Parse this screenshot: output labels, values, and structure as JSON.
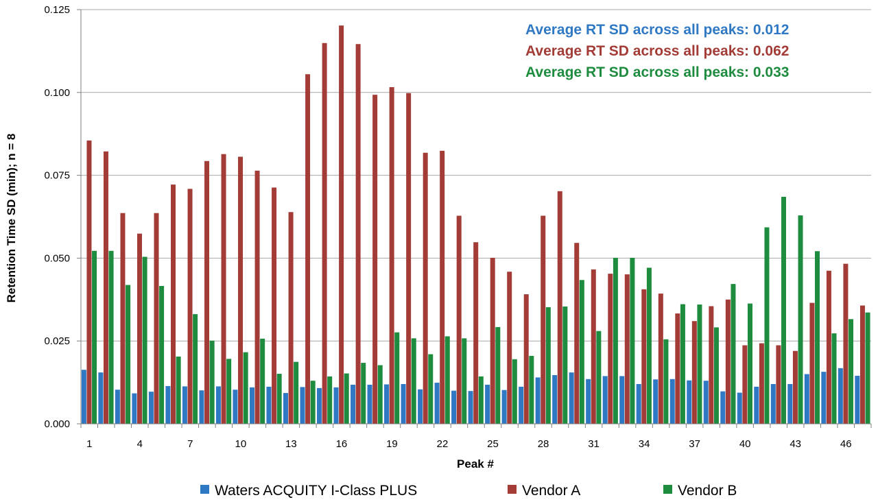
{
  "chart_data": {
    "type": "bar",
    "xlabel": "Peak #",
    "ylabel": "Retention Time SD (min); n = 8",
    "ylim": [
      0,
      0.125
    ],
    "yticks": [
      "0.000",
      "0.025",
      "0.050",
      "0.075",
      "0.100",
      "0.125"
    ],
    "ytick_values": [
      0,
      0.025,
      0.05,
      0.075,
      0.1,
      0.125
    ],
    "xtick_labels": [
      "1",
      "4",
      "7",
      "10",
      "13",
      "16",
      "19",
      "22",
      "25",
      "28",
      "31",
      "34",
      "37",
      "40",
      "43",
      "46"
    ],
    "categories": [
      "1",
      "2",
      "3",
      "4",
      "5",
      "6",
      "7",
      "8",
      "9",
      "10",
      "11",
      "12",
      "13",
      "14",
      "15",
      "16",
      "17",
      "18",
      "19",
      "20",
      "21",
      "22",
      "23",
      "24",
      "25",
      "26",
      "27",
      "28",
      "29",
      "30",
      "31",
      "32",
      "33",
      "34",
      "35",
      "36",
      "37",
      "38",
      "39",
      "40",
      "41",
      "42",
      "43",
      "44",
      "45",
      "46",
      "47"
    ],
    "grid": "horizontal",
    "legend_position": "bottom",
    "series": [
      {
        "name": "Waters ACQUITY I-Class PLUS",
        "color": "#2F78C4",
        "values": [
          0.0163,
          0.0155,
          0.0103,
          0.0092,
          0.0097,
          0.0114,
          0.0113,
          0.0101,
          0.0113,
          0.0103,
          0.011,
          0.0112,
          0.0093,
          0.0111,
          0.0108,
          0.011,
          0.0118,
          0.0118,
          0.0119,
          0.012,
          0.0104,
          0.0124,
          0.01,
          0.0099,
          0.0118,
          0.0102,
          0.0112,
          0.014,
          0.0147,
          0.0155,
          0.0135,
          0.0144,
          0.0144,
          0.012,
          0.0134,
          0.0135,
          0.0131,
          0.013,
          0.0098,
          0.0094,
          0.0112,
          0.012,
          0.012,
          0.015,
          0.0157,
          0.0168,
          0.0145
        ]
      },
      {
        "name": "Vendor A",
        "color": "#A33B36",
        "values": [
          0.0855,
          0.0822,
          0.0636,
          0.0574,
          0.0636,
          0.0722,
          0.0709,
          0.0793,
          0.0814,
          0.0806,
          0.0764,
          0.0713,
          0.0639,
          0.1055,
          0.1149,
          0.1202,
          0.1146,
          0.0993,
          0.1016,
          0.0998,
          0.0818,
          0.0824,
          0.0628,
          0.0548,
          0.0501,
          0.0459,
          0.0391,
          0.0628,
          0.0702,
          0.0546,
          0.0466,
          0.0453,
          0.0451,
          0.0406,
          0.0393,
          0.0333,
          0.031,
          0.0355,
          0.0375,
          0.0237,
          0.0243,
          0.0237,
          0.022,
          0.0365,
          0.0462,
          0.0483,
          0.0357
        ]
      },
      {
        "name": "Vendor B",
        "color": "#1E8C3E",
        "values": [
          0.0522,
          0.0522,
          0.0419,
          0.0504,
          0.0416,
          0.0203,
          0.0331,
          0.0251,
          0.0196,
          0.0216,
          0.0257,
          0.0151,
          0.0187,
          0.013,
          0.0143,
          0.0152,
          0.0184,
          0.0177,
          0.0276,
          0.0258,
          0.021,
          0.0264,
          0.0258,
          0.0143,
          0.0292,
          0.0195,
          0.0205,
          0.0352,
          0.0354,
          0.0434,
          0.028,
          0.0501,
          0.0501,
          0.0471,
          0.0255,
          0.0361,
          0.036,
          0.0291,
          0.0422,
          0.0363,
          0.0593,
          0.0685,
          0.0629,
          0.0521,
          0.0273,
          0.0316,
          0.0336
        ]
      }
    ],
    "annotations": [
      {
        "text": "Average RT SD across all peaks: 0.012",
        "color": "#2F78C4"
      },
      {
        "text": "Average RT SD across all peaks: 0.062",
        "color": "#A33B36"
      },
      {
        "text": "Average RT SD across all peaks: 0.033",
        "color": "#1E8C3E"
      }
    ]
  }
}
